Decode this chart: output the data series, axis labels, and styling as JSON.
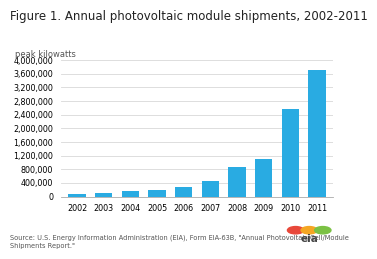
{
  "title": "Figure 1. Annual photovoltaic module shipments, 2002-2011",
  "ylabel": "peak kilowatts",
  "years": [
    2002,
    2003,
    2004,
    2005,
    2006,
    2007,
    2008,
    2009,
    2010,
    2011
  ],
  "values": [
    75000,
    110000,
    175000,
    205000,
    275000,
    460000,
    875000,
    1100000,
    2550000,
    3700000
  ],
  "bar_color": "#29ABE2",
  "ylim": [
    0,
    4000000
  ],
  "yticks": [
    0,
    400000,
    800000,
    1200000,
    1600000,
    2000000,
    2400000,
    2800000,
    3200000,
    3600000,
    4000000
  ],
  "background_color": "#ffffff",
  "plot_bg_color": "#ffffff",
  "grid_color": "#d8d8d8",
  "source_text": "Source: U.S. Energy Information Administration (EIA), Form EIA-63B, \"Annual Photovoltaic Cell/Module\nShipments Report.\"",
  "title_fontsize": 8.5,
  "ylabel_fontsize": 6.0,
  "tick_fontsize": 5.8,
  "source_fontsize": 4.8,
  "eia_colors": [
    "#E8483A",
    "#F5A623",
    "#7BC144"
  ]
}
